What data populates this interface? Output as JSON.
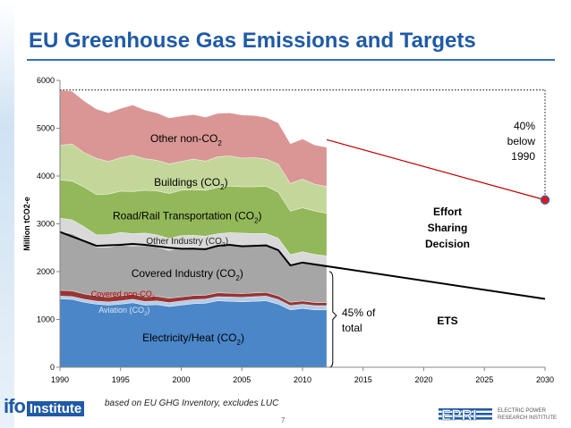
{
  "title": "EU Greenhouse Gas Emissions and Targets",
  "footer_note": "based on EU GHG Inventory, excludes LUC",
  "page_number": "7",
  "logos": {
    "left": {
      "main": "ifo",
      "suffix": "Institute"
    },
    "right": "EPRI ELECTRIC POWER RESEARCH INSTITUTE"
  },
  "chart_data": {
    "type": "area",
    "ylabel": "Million tCO2-e",
    "xlim": [
      1990,
      2030
    ],
    "ylim": [
      0,
      6000
    ],
    "x_ticks": [
      1990,
      1995,
      2000,
      2005,
      2010,
      2015,
      2020,
      2025,
      2030
    ],
    "y_ticks": [
      0,
      1000,
      2000,
      3000,
      4000,
      5000,
      6000
    ],
    "grid": false,
    "x": [
      1990,
      1991,
      1992,
      1993,
      1994,
      1995,
      1996,
      1997,
      1998,
      1999,
      2000,
      2001,
      2002,
      2003,
      2004,
      2005,
      2006,
      2007,
      2008,
      2009,
      2010,
      2011,
      2012
    ],
    "stack_order_bottom_to_top": [
      "Electricity/Heat (CO2)",
      "Aviation (CO2)",
      "Covered non-CO2",
      "Covered Industry (CO2)",
      "Other Industry (CO2)",
      "Road/Rail Transportation (CO2)",
      "Buildings (CO2)",
      "Other non-CO2"
    ],
    "series": [
      {
        "label": "Electricity/Heat (CO2)",
        "color": "#4a86c8",
        "values": [
          1430,
          1420,
          1360,
          1320,
          1300,
          1320,
          1350,
          1300,
          1310,
          1270,
          1300,
          1330,
          1340,
          1390,
          1380,
          1370,
          1380,
          1390,
          1320,
          1200,
          1230,
          1200,
          1200
        ]
      },
      {
        "label": "Aviation (CO2)",
        "color": "#b6cbe6",
        "values": [
          60,
          60,
          62,
          64,
          66,
          70,
          72,
          75,
          78,
          82,
          86,
          86,
          85,
          86,
          90,
          93,
          96,
          99,
          97,
          90,
          88,
          90,
          88
        ]
      },
      {
        "label": "Covered non-CO2",
        "color": "#963634",
        "values": [
          120,
          118,
          112,
          108,
          105,
          104,
          103,
          100,
          96,
          92,
          86,
          84,
          82,
          81,
          80,
          79,
          78,
          77,
          76,
          70,
          68,
          65,
          62
        ]
      },
      {
        "label": "Covered Industry (CO2)",
        "color": "#a6a6a6",
        "values": [
          1220,
          1200,
          1130,
          1020,
          1040,
          1060,
          1010,
          1070,
          1030,
          1000,
          1030,
          1010,
          990,
          990,
          1020,
          1020,
          1000,
          990,
          970,
          780,
          810,
          790,
          770
        ]
      },
      {
        "label": "Other Industry (CO2)",
        "color": "#d9d9d9",
        "values": [
          290,
          285,
          275,
          260,
          262,
          265,
          260,
          262,
          255,
          250,
          252,
          250,
          245,
          244,
          245,
          244,
          242,
          240,
          238,
          215,
          220,
          215,
          210
        ]
      },
      {
        "label": "Road/Rail Transportation (CO2)",
        "color": "#93b85a",
        "values": [
          800,
          810,
          830,
          840,
          850,
          865,
          880,
          895,
          920,
          940,
          950,
          955,
          960,
          970,
          975,
          970,
          980,
          990,
          960,
          910,
          920,
          910,
          890
        ]
      },
      {
        "label": "Buildings (CO2)",
        "color": "#c4d79b",
        "values": [
          720,
          780,
          720,
          760,
          680,
          700,
          760,
          660,
          640,
          620,
          600,
          640,
          610,
          640,
          630,
          600,
          610,
          570,
          590,
          580,
          600,
          560,
          560
        ]
      },
      {
        "label": "Other non-CO2",
        "color": "#d99694",
        "values": [
          1160,
          1100,
          1080,
          1030,
          1020,
          1030,
          1050,
          1020,
          990,
          960,
          950,
          930,
          920,
          910,
          900,
          900,
          880,
          870,
          860,
          830,
          840,
          820,
          820
        ]
      }
    ],
    "ets_line": {
      "label": "ETS",
      "color": "#000000",
      "x": [
        1990,
        1992,
        1993,
        1995,
        1996,
        1997,
        1998,
        1999,
        2000,
        2001,
        2002,
        2003,
        2004,
        2005,
        2006,
        2007,
        2008,
        2009,
        2010,
        2030
      ],
      "y": [
        2830,
        2640,
        2540,
        2560,
        2580,
        2560,
        2530,
        2500,
        2480,
        2480,
        2470,
        2540,
        2560,
        2530,
        2540,
        2550,
        2450,
        2130,
        2190,
        1430
      ]
    },
    "target": {
      "x": 2030,
      "y": 3500,
      "color": "#c00000",
      "start_x": 2012,
      "start_y": 4760,
      "label": "40% below 1990",
      "label_lines": [
        "40%",
        "below",
        "1990"
      ]
    },
    "reference_line": {
      "y": 5800,
      "style": "dotted",
      "color": "#000000"
    },
    "annotations": {
      "effort_sharing": [
        "Effort",
        "Sharing",
        "Decision"
      ],
      "ets": "ETS",
      "share": [
        "45% of",
        "total"
      ]
    },
    "area_labels": [
      {
        "text": "Other non-CO",
        "sub": "2",
        "series": "Other non-CO2",
        "color": "#000000",
        "x": 2000.4,
        "y": 4710,
        "size": 12
      },
      {
        "text": "Buildings (CO",
        "sub": "2",
        "tail": ")",
        "series": "Buildings (CO2)",
        "color": "#000000",
        "x": 2000.8,
        "y": 3790,
        "size": 12
      },
      {
        "text": "Road/Rail Transportation (CO",
        "sub": "2",
        "tail": ")",
        "series": "Road/Rail Transportation (CO2)",
        "color": "#000000",
        "x": 2000.5,
        "y": 3090,
        "size": 12
      },
      {
        "text": "Other Industry (CO",
        "sub": "2",
        "tail": ")",
        "series": "Other Industry (CO2)",
        "color": "#222222",
        "x": 2000.5,
        "y": 2580,
        "size": 10
      },
      {
        "text": "Covered Industry (CO",
        "sub": "2",
        "tail": ")",
        "series": "Covered Industry (CO2)",
        "color": "#000000",
        "x": 2000.5,
        "y": 1890,
        "size": 12
      },
      {
        "text": "Covered non-CO",
        "sub": "2",
        "series": "Covered non-CO2",
        "color": "#c00000",
        "x": 1995.2,
        "y": 1480,
        "size": 9
      },
      {
        "text": "Aviation (CO",
        "sub": "2",
        "tail": ")",
        "series": "Aviation (CO2)",
        "color": "#dce6f1",
        "x": 1995.3,
        "y": 1140,
        "size": 9
      },
      {
        "text": "Electricity/Heat (CO",
        "sub": "2",
        "tail": ")",
        "series": "Electricity/Heat (CO2)",
        "color": "#000000",
        "x": 2001.0,
        "y": 540,
        "size": 12
      }
    ]
  }
}
